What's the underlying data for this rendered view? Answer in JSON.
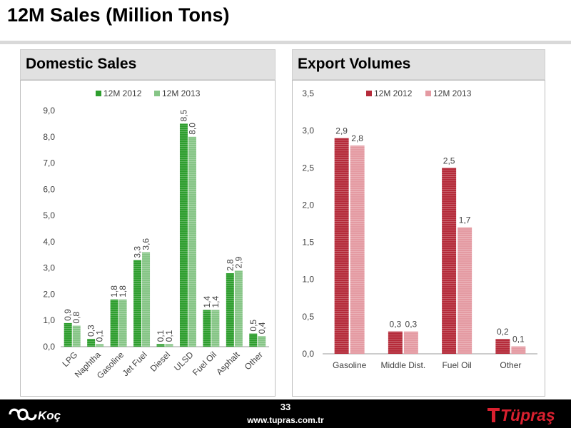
{
  "page": {
    "title": "12M Sales (Million Tons)",
    "page_number": "33",
    "website": "www.tupras.com.tr",
    "logo_left": "Koç",
    "logo_right": "Tüpraş"
  },
  "colors": {
    "green_2012": "#2e9e2e",
    "green_2013": "#86c586",
    "red_2012": "#b52b3a",
    "red_2013": "#e49aa2",
    "logo_red": "#d9202f"
  },
  "chart_data": [
    {
      "id": "domestic",
      "type": "bar",
      "title": "Domestic Sales",
      "categories": [
        "LPG",
        "Naphtha",
        "Gasoline",
        "Jet Fuel",
        "Diesel",
        "ULSD",
        "Fuel Oil",
        "Asphalt",
        "Other"
      ],
      "series": [
        {
          "name": "12M 2012",
          "values": [
            0.9,
            0.3,
            1.8,
            3.3,
            0.1,
            8.5,
            1.4,
            2.8,
            0.5
          ],
          "labels": [
            "0,9",
            "0,3",
            "1,8",
            "3,3",
            "0,1",
            "8,5",
            "1,4",
            "2,8",
            "0,5"
          ]
        },
        {
          "name": "12M 2013",
          "values": [
            0.8,
            0.1,
            1.8,
            3.6,
            0.1,
            8.0,
            1.4,
            2.9,
            0.4
          ],
          "labels": [
            "0,8",
            "0,1",
            "1,8",
            "3,6",
            "0,1",
            "8,0",
            "1,4",
            "2,9",
            "0,4"
          ]
        }
      ],
      "ylim": [
        0,
        9
      ],
      "yticks": [
        "0,0",
        "1,0",
        "2,0",
        "3,0",
        "4,0",
        "5,0",
        "6,0",
        "7,0",
        "8,0",
        "9,0"
      ],
      "xlabel": "",
      "ylabel": "",
      "grid": false,
      "legend": "top-center"
    },
    {
      "id": "export",
      "type": "bar",
      "title": "Export Volumes",
      "categories": [
        "Gasoline",
        "Middle Dist.",
        "Fuel Oil",
        "Other"
      ],
      "series": [
        {
          "name": "12M 2012",
          "values": [
            2.9,
            0.3,
            2.5,
            0.2
          ],
          "labels": [
            "2,9",
            "0,3",
            "2,5",
            "0,2"
          ]
        },
        {
          "name": "12M 2013",
          "values": [
            2.8,
            0.3,
            1.7,
            0.1
          ],
          "labels": [
            "2,8",
            "0,3",
            "1,7",
            "0,1"
          ]
        }
      ],
      "ylim": [
        0,
        3.5
      ],
      "yticks": [
        "0,0",
        "0,5",
        "1,0",
        "1,5",
        "2,0",
        "2,5",
        "3,0",
        "3,5"
      ],
      "xlabel": "",
      "ylabel": "",
      "grid": false,
      "legend": "top-center"
    }
  ]
}
